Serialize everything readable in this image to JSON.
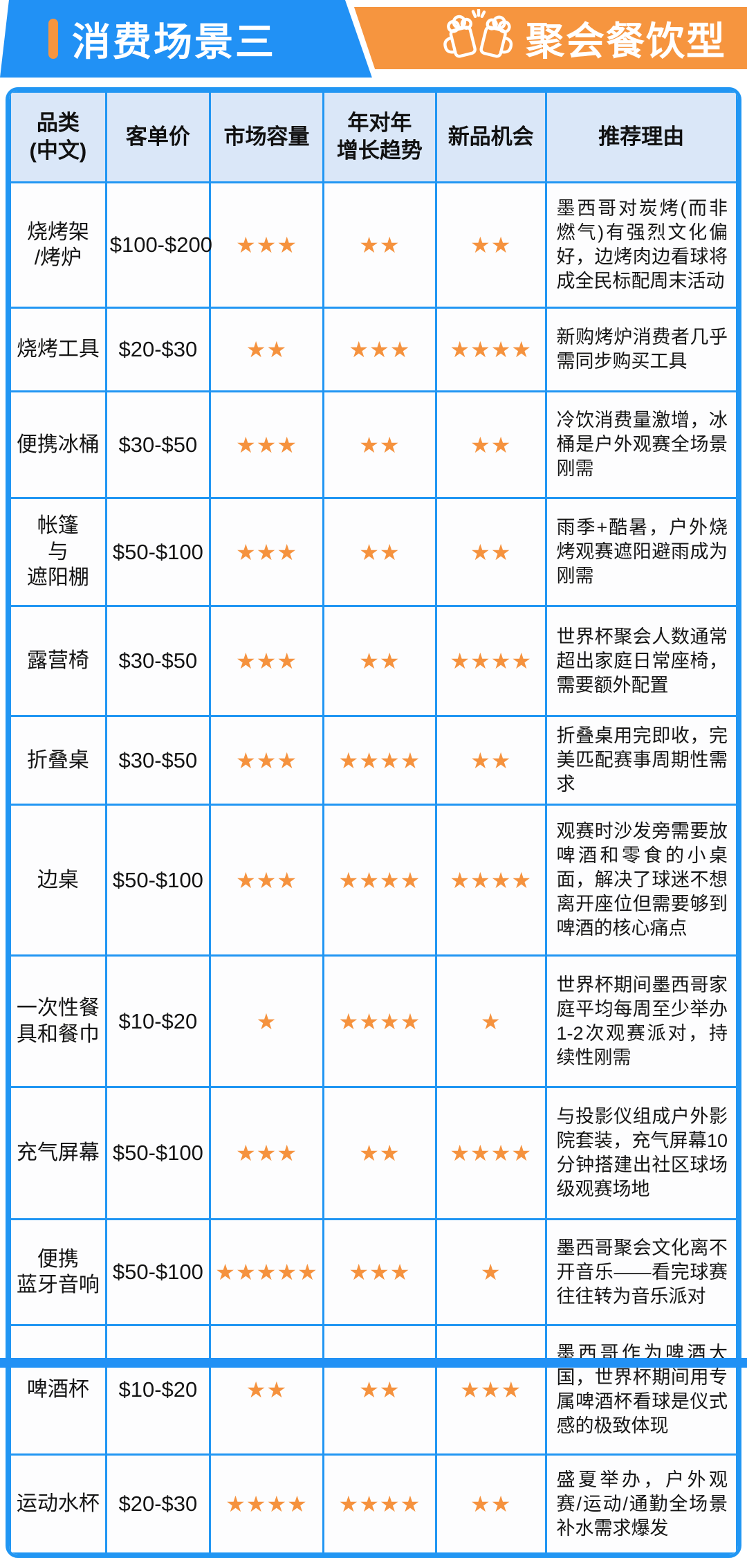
{
  "banner": {
    "title": "消费场景三",
    "badge": "聚会餐饮型",
    "blue_color": "#2191F5",
    "orange_color": "#F6953F",
    "icon": "beer-mugs-icon"
  },
  "colors": {
    "table_border": "#2196F3",
    "header_bg": "#DAE7F8",
    "star": "#F5923E",
    "text": "#141414"
  },
  "table": {
    "headers": [
      "品类\n(中文)",
      "客单价",
      "市场容量",
      "年对年\n增长趋势",
      "新品机会",
      "推荐理由"
    ],
    "star_symbol": "★",
    "rows": [
      {
        "category": "烧烤架\n/烤炉",
        "price": "$100-$200",
        "market": 3,
        "growth": 2,
        "opportunity": 2,
        "reason": "墨西哥对炭烤(而非燃气)有强烈文化偏好，边烤肉边看球将成全民标配周末活动"
      },
      {
        "category": "烧烤工具",
        "price": "$20-$30",
        "market": 2,
        "growth": 3,
        "opportunity": 4,
        "reason": "新购烤炉消费者几乎需同步购买工具"
      },
      {
        "category": "便携冰桶",
        "price": "$30-$50",
        "market": 3,
        "growth": 2,
        "opportunity": 2,
        "reason": "冷饮消费量激增，冰桶是户外观赛全场景刚需"
      },
      {
        "category": "帐篷\n与\n遮阳棚",
        "price": "$50-$100",
        "market": 3,
        "growth": 2,
        "opportunity": 2,
        "reason": "雨季+酷暑，户外烧烤观赛遮阳避雨成为刚需"
      },
      {
        "category": "露营椅",
        "price": "$30-$50",
        "market": 3,
        "growth": 2,
        "opportunity": 4,
        "reason": "世界杯聚会人数通常超出家庭日常座椅，需要额外配置"
      },
      {
        "category": "折叠桌",
        "price": "$30-$50",
        "market": 3,
        "growth": 4,
        "opportunity": 2,
        "reason": "折叠桌用完即收，完美匹配赛事周期性需求"
      },
      {
        "category": "边桌",
        "price": "$50-$100",
        "market": 3,
        "growth": 4,
        "opportunity": 4,
        "reason": "观赛时沙发旁需要放啤酒和零食的小桌面，解决了球迷不想离开座位但需要够到啤酒的核心痛点"
      },
      {
        "category": "一次性餐\n具和餐巾",
        "price": "$10-$20",
        "market": 1,
        "growth": 4,
        "opportunity": 1,
        "reason": "世界杯期间墨西哥家庭平均每周至少举办1-2次观赛派对，持续性刚需"
      },
      {
        "category": "充气屏幕",
        "price": "$50-$100",
        "market": 3,
        "growth": 2,
        "opportunity": 4,
        "reason": "与投影仪组成户外影院套装，充气屏幕10分钟搭建出社区球场级观赛场地"
      },
      {
        "category": "便携\n蓝牙音响",
        "price": "$50-$100",
        "market": 5,
        "growth": 3,
        "opportunity": 1,
        "reason": "墨西哥聚会文化离不开音乐——看完球赛往往转为音乐派对"
      },
      {
        "category": "啤酒杯",
        "price": "$10-$20",
        "market": 2,
        "growth": 2,
        "opportunity": 3,
        "reason": "墨西哥作为啤酒大国，世界杯期间用专属啤酒杯看球是仪式感的极致体现"
      },
      {
        "category": "运动水杯",
        "price": "$20-$30",
        "market": 4,
        "growth": 4,
        "opportunity": 2,
        "reason": "盛夏举办，户外观赛/运动/通勤全场景补水需求爆发"
      }
    ]
  }
}
